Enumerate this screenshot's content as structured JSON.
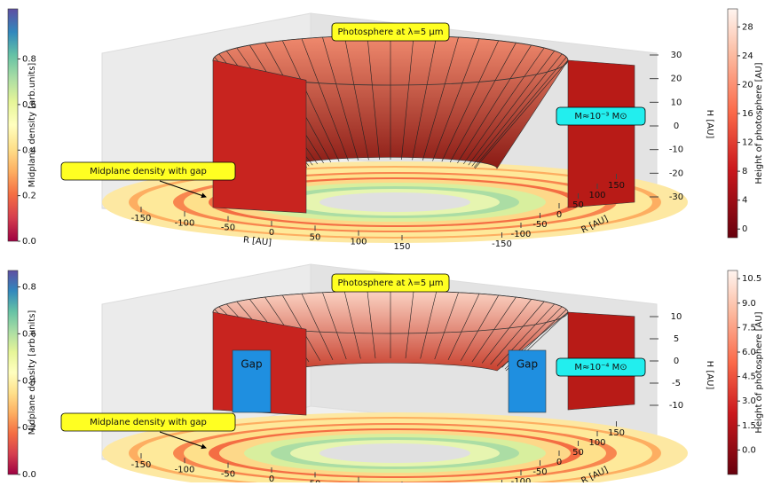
{
  "chart_data": [
    {
      "type": "surface3d",
      "photosphere_label": "Photosphere at λ=5 μm",
      "mass_label": "M≈10⁻³ M⊙",
      "midplane_label": "Midplane density with gap",
      "xlabel": "R [AU]",
      "ylabel": "R [AU]",
      "zlabel": "H [AU]",
      "xlim": [
        -180,
        180
      ],
      "xticks": [
        -150,
        -100,
        -50,
        0,
        50,
        100,
        150
      ],
      "ylim": [
        -180,
        180
      ],
      "yticks": [
        -150,
        -100,
        -50,
        0,
        50,
        100,
        150
      ],
      "zlim": [
        -35,
        35
      ],
      "zticks": [
        -30,
        -20,
        -10,
        0,
        10,
        20,
        30
      ],
      "density_colorbar": {
        "label": "Midplane density [arb.units]",
        "colormap": "Spectral",
        "lim": [
          0,
          1.02
        ],
        "ticks": [
          {
            "value": 0,
            "label": "0.0"
          },
          0.2,
          0.4,
          0.6,
          0.8
        ]
      },
      "height_colorbar": {
        "label": "Height of photosphere [AU]",
        "colormap": "Reds",
        "lim": [
          -1.2,
          30.5
        ],
        "ticks": [
          0,
          4,
          8,
          12,
          16,
          20,
          24,
          28
        ]
      }
    },
    {
      "type": "surface3d",
      "photosphere_label": "Photosphere at λ=5 μm",
      "mass_label": "M≈10⁻⁴ M⊙",
      "midplane_label": "Midplane density with gap",
      "gap_labels": [
        "Gap",
        "Gap"
      ],
      "xlabel": "R [AU]",
      "ylabel": "R [AU]",
      "zlabel": "H [AU]",
      "xlim": [
        -180,
        180
      ],
      "xticks": [
        -150,
        -100,
        -50,
        0,
        50,
        100,
        150
      ],
      "ylim": [
        -180,
        180
      ],
      "yticks": [
        -150,
        -100,
        -50,
        0,
        50,
        100,
        150
      ],
      "zlim": [
        -13,
        13
      ],
      "zticks": [
        -10,
        -5,
        0,
        5,
        10
      ],
      "density_colorbar": {
        "label": "Midplane density [arb.units]",
        "colormap": "Spectral",
        "lim": [
          0,
          0.87
        ],
        "ticks": [
          {
            "value": 0,
            "label": "0.0"
          },
          0.2,
          0.4,
          0.6,
          0.8
        ]
      },
      "height_colorbar": {
        "label": "Height of photosphere [AU]",
        "colormap": "Reds",
        "lim": [
          -1.5,
          11
        ],
        "ticks": [
          {
            "value": 0,
            "label": "0.0"
          },
          1.5,
          {
            "value": 3,
            "label": "3.0"
          },
          4.5,
          {
            "value": 6,
            "label": "6.0"
          },
          7.5,
          {
            "value": 9,
            "label": "9.0"
          },
          10.5
        ]
      }
    }
  ]
}
